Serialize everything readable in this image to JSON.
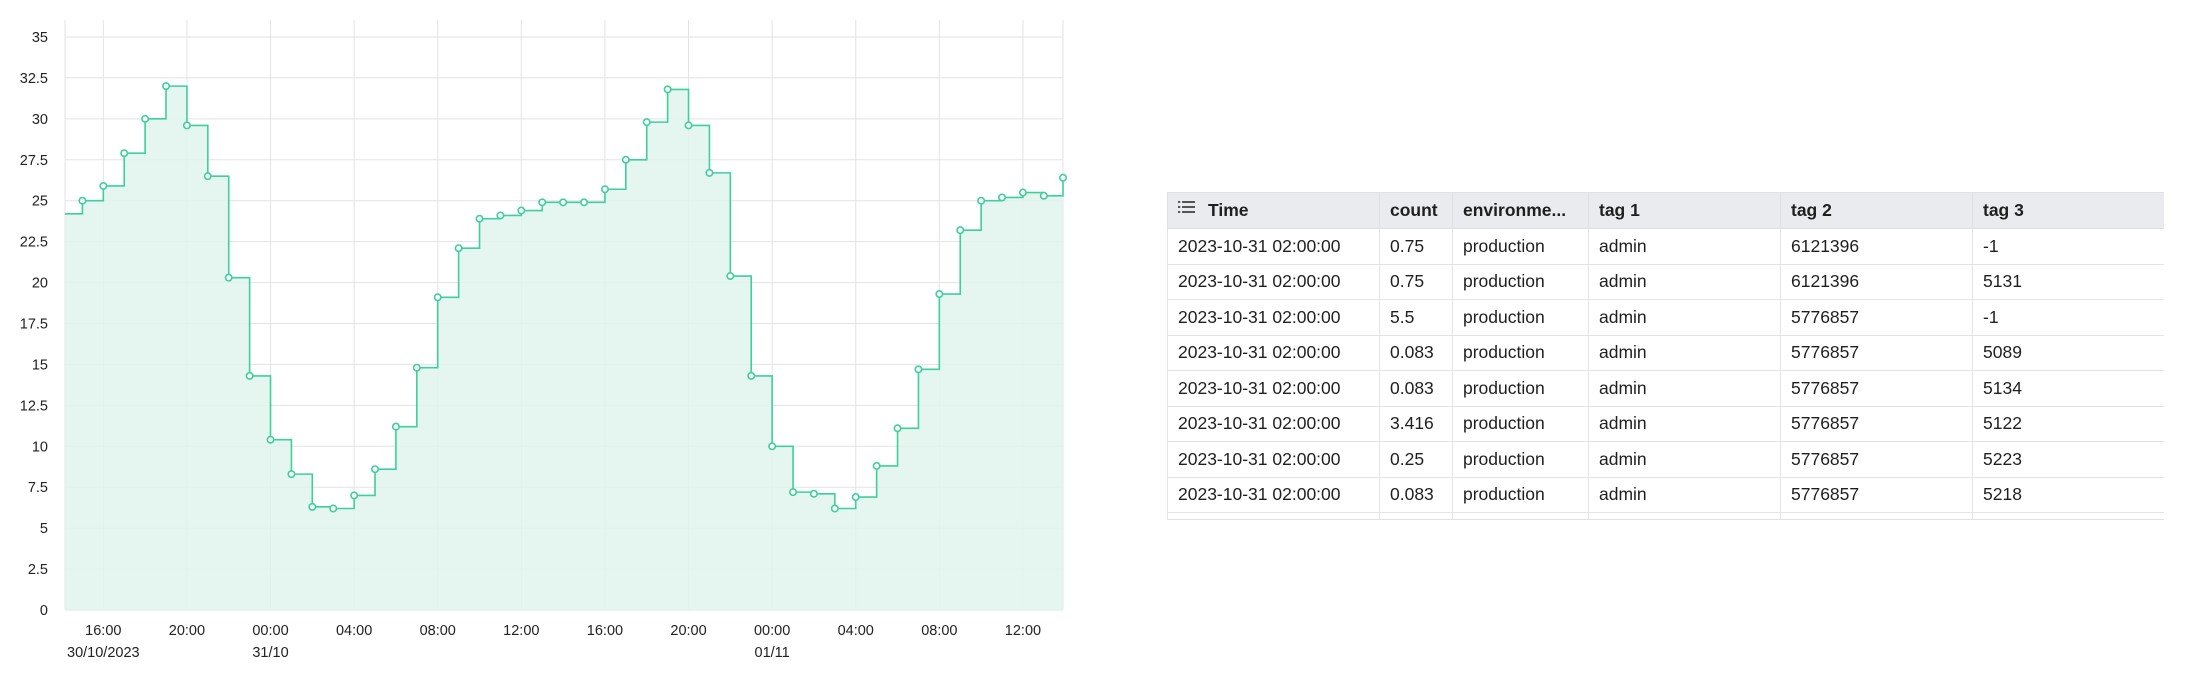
{
  "chart_data": {
    "type": "area",
    "interpolation": "step-after",
    "grid": true,
    "legend": "none",
    "title": "",
    "xlabel": "",
    "ylabel": "",
    "colors": {
      "line": "#3ecf9a",
      "fill": "#e0f5ee",
      "grid": "#e3e3e3",
      "point_fill": "#ffffff"
    },
    "x_range": [
      "2023-10-30 14:10",
      "2023-11-01 13:55"
    ],
    "ylim": [
      0,
      35
    ],
    "y_ticks": [
      "0",
      "2.5",
      "5",
      "7.5",
      "10",
      "12.5",
      "15",
      "17.5",
      "20",
      "22.5",
      "25",
      "27.5",
      "30",
      "32.5",
      "35"
    ],
    "x_ticks": [
      {
        "t": "2023-10-30 16:00",
        "label": "16:00",
        "sublabel": "30/10/2023"
      },
      {
        "t": "2023-10-30 20:00",
        "label": "20:00"
      },
      {
        "t": "2023-10-31 00:00",
        "label": "00:00",
        "sublabel": "31/10"
      },
      {
        "t": "2023-10-31 04:00",
        "label": "04:00"
      },
      {
        "t": "2023-10-31 08:00",
        "label": "08:00"
      },
      {
        "t": "2023-10-31 12:00",
        "label": "12:00"
      },
      {
        "t": "2023-10-31 16:00",
        "label": "16:00"
      },
      {
        "t": "2023-10-31 20:00",
        "label": "20:00"
      },
      {
        "t": "2023-11-01 00:00",
        "label": "00:00",
        "sublabel": "01/11"
      },
      {
        "t": "2023-11-01 04:00",
        "label": "04:00"
      },
      {
        "t": "2023-11-01 08:00",
        "label": "08:00"
      },
      {
        "t": "2023-11-01 12:00",
        "label": "12:00"
      }
    ],
    "initial_value": 24.2,
    "points": [
      {
        "x": "2023-10-30 15:00",
        "y": 25.0
      },
      {
        "x": "2023-10-30 16:00",
        "y": 25.9
      },
      {
        "x": "2023-10-30 17:00",
        "y": 27.9
      },
      {
        "x": "2023-10-30 18:00",
        "y": 30.0
      },
      {
        "x": "2023-10-30 19:00",
        "y": 32.0
      },
      {
        "x": "2023-10-30 20:00",
        "y": 29.6
      },
      {
        "x": "2023-10-30 21:00",
        "y": 26.5
      },
      {
        "x": "2023-10-30 22:00",
        "y": 20.3
      },
      {
        "x": "2023-10-30 23:00",
        "y": 14.3
      },
      {
        "x": "2023-10-31 00:00",
        "y": 10.4
      },
      {
        "x": "2023-10-31 01:00",
        "y": 8.3
      },
      {
        "x": "2023-10-31 02:00",
        "y": 6.3
      },
      {
        "x": "2023-10-31 03:00",
        "y": 6.2
      },
      {
        "x": "2023-10-31 04:00",
        "y": 7.0
      },
      {
        "x": "2023-10-31 05:00",
        "y": 8.6
      },
      {
        "x": "2023-10-31 06:00",
        "y": 11.2
      },
      {
        "x": "2023-10-31 07:00",
        "y": 14.8
      },
      {
        "x": "2023-10-31 08:00",
        "y": 19.1
      },
      {
        "x": "2023-10-31 09:00",
        "y": 22.1
      },
      {
        "x": "2023-10-31 10:00",
        "y": 23.9
      },
      {
        "x": "2023-10-31 11:00",
        "y": 24.1
      },
      {
        "x": "2023-10-31 12:00",
        "y": 24.4
      },
      {
        "x": "2023-10-31 13:00",
        "y": 24.9
      },
      {
        "x": "2023-10-31 14:00",
        "y": 24.9
      },
      {
        "x": "2023-10-31 15:00",
        "y": 24.9
      },
      {
        "x": "2023-10-31 16:00",
        "y": 25.7
      },
      {
        "x": "2023-10-31 17:00",
        "y": 27.5
      },
      {
        "x": "2023-10-31 18:00",
        "y": 29.8
      },
      {
        "x": "2023-10-31 19:00",
        "y": 31.8
      },
      {
        "x": "2023-10-31 20:00",
        "y": 29.6
      },
      {
        "x": "2023-10-31 21:00",
        "y": 26.7
      },
      {
        "x": "2023-10-31 22:00",
        "y": 20.4
      },
      {
        "x": "2023-10-31 23:00",
        "y": 14.3
      },
      {
        "x": "2023-11-01 00:00",
        "y": 10.0
      },
      {
        "x": "2023-11-01 01:00",
        "y": 7.2
      },
      {
        "x": "2023-11-01 02:00",
        "y": 7.1
      },
      {
        "x": "2023-11-01 03:00",
        "y": 6.2
      },
      {
        "x": "2023-11-01 04:00",
        "y": 6.9
      },
      {
        "x": "2023-11-01 05:00",
        "y": 8.8
      },
      {
        "x": "2023-11-01 06:00",
        "y": 11.1
      },
      {
        "x": "2023-11-01 07:00",
        "y": 14.7
      },
      {
        "x": "2023-11-01 08:00",
        "y": 19.3
      },
      {
        "x": "2023-11-01 09:00",
        "y": 23.2
      },
      {
        "x": "2023-11-01 10:00",
        "y": 25.0
      },
      {
        "x": "2023-11-01 11:00",
        "y": 25.2
      },
      {
        "x": "2023-11-01 12:00",
        "y": 25.5
      },
      {
        "x": "2023-11-01 13:00",
        "y": 25.3
      },
      {
        "x": "2023-11-01 13:55",
        "y": 26.4
      }
    ]
  },
  "table": {
    "header_icon": "list-icon",
    "columns": [
      "Time",
      "count",
      "environme...",
      "tag 1",
      "tag 2",
      "tag 3"
    ],
    "rows": [
      [
        "2023-10-31 02:00:00",
        "0.75",
        "production",
        "admin",
        "6121396",
        "-1"
      ],
      [
        "2023-10-31 02:00:00",
        "0.75",
        "production",
        "admin",
        "6121396",
        "5131"
      ],
      [
        "2023-10-31 02:00:00",
        "5.5",
        "production",
        "admin",
        "5776857",
        "-1"
      ],
      [
        "2023-10-31 02:00:00",
        "0.083",
        "production",
        "admin",
        "5776857",
        "5089"
      ],
      [
        "2023-10-31 02:00:00",
        "0.083",
        "production",
        "admin",
        "5776857",
        "5134"
      ],
      [
        "2023-10-31 02:00:00",
        "3.416",
        "production",
        "admin",
        "5776857",
        "5122"
      ],
      [
        "2023-10-31 02:00:00",
        "0.25",
        "production",
        "admin",
        "5776857",
        "5223"
      ],
      [
        "2023-10-31 02:00:00",
        "0.083",
        "production",
        "admin",
        "5776857",
        "5218"
      ],
      [
        "",
        "",
        "",
        "",
        "",
        ""
      ]
    ]
  }
}
